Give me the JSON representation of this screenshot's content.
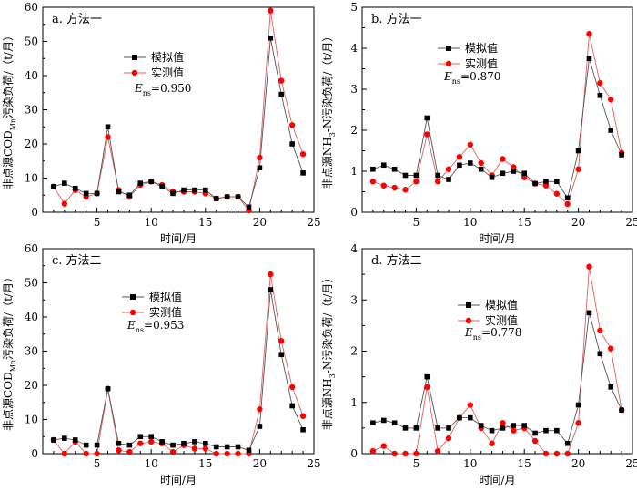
{
  "x_axis_label": "时间/月",
  "legend_labels": {
    "simulated": "模拟值",
    "measured": "实测值"
  },
  "colors": {
    "simulated": "#000000",
    "measured": "#ff0000",
    "simulated_line": "#555555",
    "measured_line": "#e06060"
  },
  "chart_data": [
    {
      "type": "line",
      "panel_label": "a. 方法一",
      "ylabel_prefix": "非点源COD",
      "ylabel_subscript": "Mn",
      "ylabel_suffix": "污染负荷/（t/月）",
      "ens_label": "E",
      "ens_subscript": "ns",
      "ens_value": "=0.950",
      "xlim": [
        0,
        25
      ],
      "ylim": [
        0,
        60
      ],
      "xticks": [
        5,
        10,
        15,
        20,
        25
      ],
      "yticks": [
        0,
        10,
        20,
        30,
        40,
        50,
        60
      ],
      "x": [
        1,
        2,
        3,
        4,
        5,
        6,
        7,
        8,
        9,
        10,
        11,
        12,
        13,
        14,
        15,
        16,
        17,
        18,
        19,
        20,
        21,
        22,
        23,
        24
      ],
      "series": [
        {
          "name": "模拟值",
          "values": [
            7.5,
            8.5,
            7.0,
            5.5,
            5.5,
            25.0,
            6.0,
            5.0,
            8.5,
            9.0,
            7.5,
            5.5,
            6.5,
            6.5,
            6.5,
            4.0,
            4.5,
            4.5,
            1.5,
            13.0,
            51.0,
            34.5,
            20.0,
            11.5
          ]
        },
        {
          "name": "实测值",
          "values": [
            7.5,
            2.5,
            6.5,
            4.5,
            5.5,
            22.0,
            6.5,
            4.5,
            8.0,
            9.0,
            8.0,
            6.0,
            6.0,
            6.0,
            5.5,
            4.0,
            4.5,
            4.5,
            0.5,
            16.0,
            59.0,
            38.5,
            25.5,
            17.0
          ]
        }
      ]
    },
    {
      "type": "line",
      "panel_label": "b. 方法一",
      "ylabel_prefix": "非点源NH",
      "ylabel_subscript": "3",
      "ylabel_suffix": "-N污染负荷/（t/月）",
      "ens_label": "E",
      "ens_subscript": "ns",
      "ens_value": "=0.870",
      "xlim": [
        0,
        25
      ],
      "ylim": [
        0,
        5
      ],
      "xticks": [
        5,
        10,
        15,
        20,
        25
      ],
      "yticks": [
        0,
        1,
        2,
        3,
        4,
        5
      ],
      "x": [
        1,
        2,
        3,
        4,
        5,
        6,
        7,
        8,
        9,
        10,
        11,
        12,
        13,
        14,
        15,
        16,
        17,
        18,
        19,
        20,
        21,
        22,
        23,
        24
      ],
      "series": [
        {
          "name": "模拟值",
          "values": [
            1.05,
            1.15,
            1.05,
            0.9,
            0.9,
            2.3,
            0.9,
            0.8,
            1.15,
            1.2,
            1.05,
            0.85,
            0.95,
            1.0,
            0.95,
            0.7,
            0.75,
            0.75,
            0.35,
            1.5,
            3.75,
            2.85,
            2.0,
            1.4
          ]
        },
        {
          "name": "实测值",
          "values": [
            0.75,
            0.65,
            0.6,
            0.55,
            0.75,
            1.9,
            0.75,
            1.05,
            1.35,
            1.65,
            1.2,
            0.9,
            1.3,
            1.1,
            0.85,
            0.7,
            0.65,
            0.45,
            0.2,
            1.05,
            4.35,
            3.15,
            2.75,
            1.45
          ]
        }
      ]
    },
    {
      "type": "line",
      "panel_label": "c. 方法二",
      "ylabel_prefix": "非点源COD",
      "ylabel_subscript": "Mn",
      "ylabel_suffix": "污染负荷/（t/月）",
      "ens_label": "E",
      "ens_subscript": "ns",
      "ens_value": "=0.953",
      "xlim": [
        0,
        25
      ],
      "ylim": [
        0,
        60
      ],
      "xticks": [
        5,
        10,
        15,
        20,
        25
      ],
      "yticks": [
        0,
        10,
        20,
        30,
        40,
        50,
        60
      ],
      "x": [
        1,
        2,
        3,
        4,
        5,
        6,
        7,
        8,
        9,
        10,
        11,
        12,
        13,
        14,
        15,
        16,
        17,
        18,
        19,
        20,
        21,
        22,
        23,
        24
      ],
      "series": [
        {
          "name": "模拟值",
          "values": [
            4.0,
            4.5,
            4.0,
            2.5,
            2.5,
            19.0,
            3.0,
            2.5,
            5.0,
            5.0,
            3.5,
            2.5,
            3.0,
            3.5,
            3.0,
            2.0,
            2.0,
            2.0,
            1.0,
            8.0,
            48.0,
            29.0,
            14.0,
            7.0
          ]
        },
        {
          "name": "实测值",
          "values": [
            4.0,
            0.0,
            3.5,
            0.0,
            0.0,
            19.0,
            1.0,
            0.5,
            3.0,
            3.5,
            3.0,
            0.5,
            2.5,
            1.5,
            1.5,
            0.0,
            0.0,
            0.0,
            0.0,
            13.0,
            52.5,
            33.0,
            19.5,
            11.0
          ]
        }
      ]
    },
    {
      "type": "line",
      "panel_label": "d. 方法二",
      "ylabel_prefix": "非点源NH",
      "ylabel_subscript": "3",
      "ylabel_suffix": "-N污染负荷/（t/月）",
      "ens_label": "E",
      "ens_subscript": "ns",
      "ens_value": "=0.778",
      "xlim": [
        0,
        25
      ],
      "ylim": [
        0,
        4
      ],
      "xticks": [
        5,
        10,
        15,
        20,
        25
      ],
      "yticks": [
        0,
        1,
        2,
        3,
        4
      ],
      "x": [
        1,
        2,
        3,
        4,
        5,
        6,
        7,
        8,
        9,
        10,
        11,
        12,
        13,
        14,
        15,
        16,
        17,
        18,
        19,
        20,
        21,
        22,
        23,
        24
      ],
      "series": [
        {
          "name": "模拟值",
          "values": [
            0.6,
            0.65,
            0.6,
            0.5,
            0.5,
            1.5,
            0.5,
            0.5,
            0.7,
            0.7,
            0.55,
            0.45,
            0.5,
            0.55,
            0.55,
            0.4,
            0.45,
            0.45,
            0.2,
            0.95,
            2.75,
            1.95,
            1.3,
            0.85
          ]
        },
        {
          "name": "实测值",
          "values": [
            0.05,
            0.15,
            0.0,
            0.0,
            0.0,
            1.3,
            0.05,
            0.3,
            0.7,
            0.95,
            0.5,
            0.2,
            0.6,
            0.45,
            0.5,
            0.25,
            0.0,
            0.0,
            0.0,
            0.6,
            3.65,
            2.4,
            2.05,
            0.85
          ]
        }
      ]
    }
  ]
}
